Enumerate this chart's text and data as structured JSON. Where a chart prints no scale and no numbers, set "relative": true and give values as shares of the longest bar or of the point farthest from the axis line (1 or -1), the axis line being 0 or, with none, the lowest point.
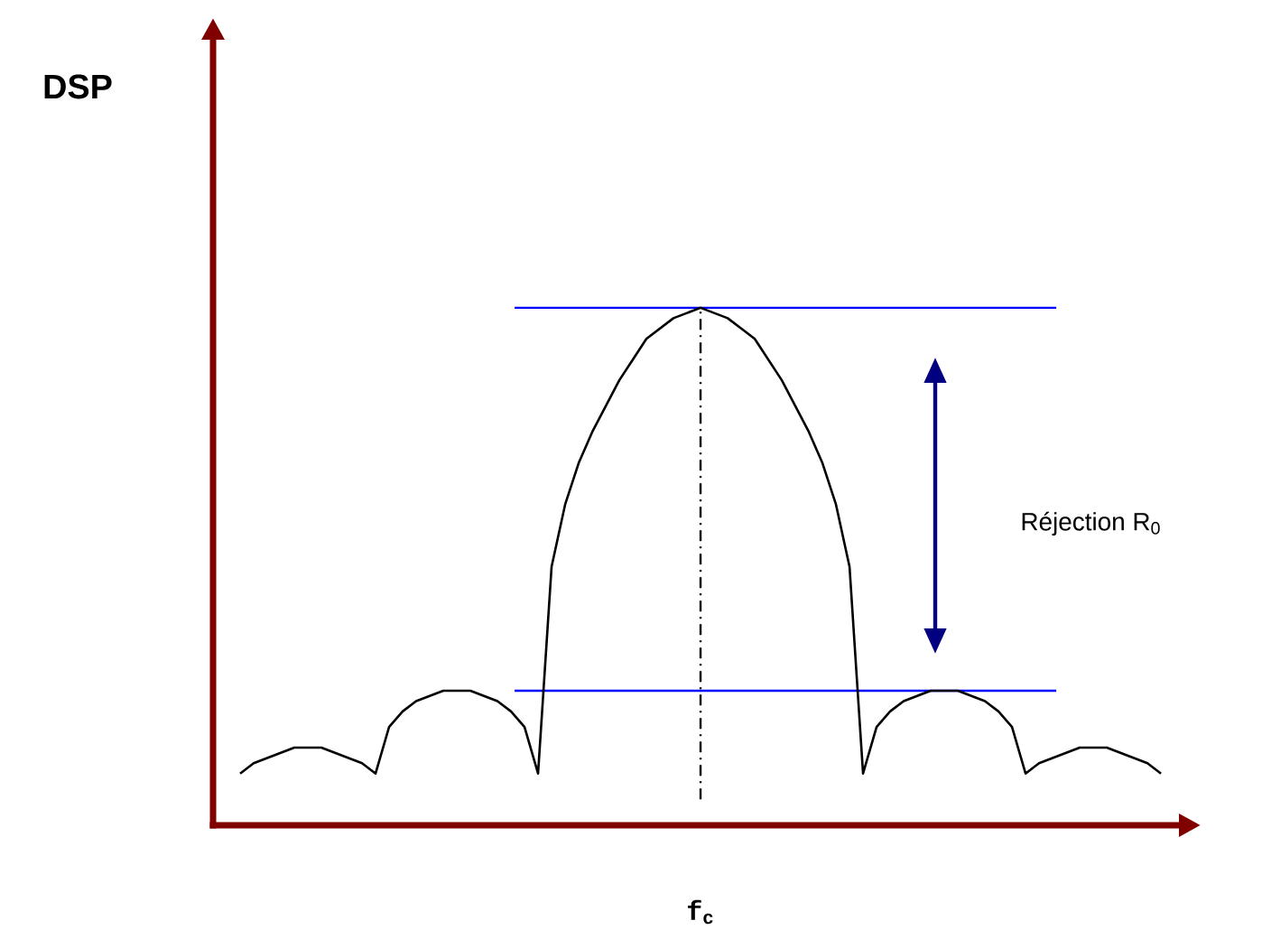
{
  "chart_data": {
    "type": "line",
    "relative": true,
    "color": "#000000",
    "categories": [
      null,
      null,
      null,
      null,
      null,
      null,
      null,
      null,
      null,
      null,
      null,
      null,
      null,
      null,
      null,
      null,
      null,
      null,
      null,
      null,
      null,
      null,
      null,
      null,
      null,
      null,
      null,
      null,
      null,
      null,
      null,
      null,
      null,
      null,
      null,
      null,
      null,
      null,
      null,
      null,
      null,
      null,
      null,
      null,
      null,
      null,
      null,
      null,
      null,
      null,
      null,
      null,
      null,
      null,
      null,
      null,
      null,
      null,
      null,
      null,
      null,
      null,
      null,
      null,
      null,
      null,
      null,
      null,
      null
    ],
    "values": [
      0.1,
      0.12,
      0.13,
      0.14,
      0.15,
      0.15,
      0.15,
      0.14,
      0.13,
      0.12,
      0.1,
      0.19,
      0.22,
      0.24,
      0.25,
      0.26,
      0.26,
      0.26,
      0.25,
      0.24,
      0.22,
      0.19,
      0.1,
      0.5,
      0.62,
      0.7,
      0.76,
      0.81,
      0.86,
      0.9,
      0.94,
      0.96,
      0.98,
      0.99,
      1,
      0.99,
      0.98,
      0.96,
      0.94,
      0.9,
      0.86,
      0.81,
      0.76,
      0.7,
      0.62,
      0.5,
      0.1,
      0.19,
      0.22,
      0.24,
      0.25,
      0.26,
      0.26,
      0.26,
      0.25,
      0.24,
      0.22,
      0.19,
      0.1,
      0.12,
      0.13,
      0.14,
      0.15,
      0.15,
      0.15,
      0.14,
      0.13,
      0.12,
      0.1
    ],
    "ref_lines": [
      {
        "axis": "y",
        "value": 1,
        "color": "#0000ff"
      },
      {
        "axis": "y",
        "value": 0.26,
        "color": "#0000ff"
      },
      {
        "axis": "x",
        "value": "f$_{c}$",
        "color": "#000000",
        "line_style": "dashdot"
      }
    ],
    "annotations": [
      "DSP",
      "Réjection R$_{0}$"
    ]
  }
}
